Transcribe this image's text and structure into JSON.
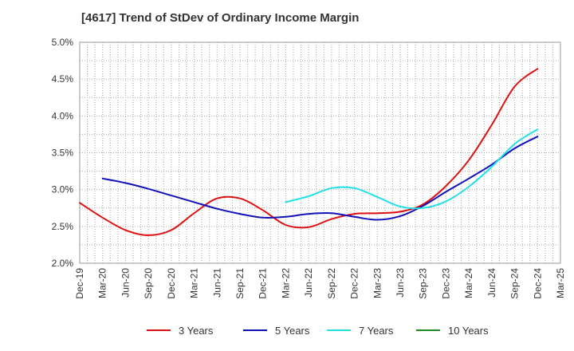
{
  "title": "[4617]  Trend of StDev of Ordinary Income Margin",
  "chart_data": {
    "type": "line",
    "title": "[4617]  Trend of StDev of Ordinary Income Margin",
    "x_tick_labels": [
      "Dec-19",
      "Mar-20",
      "Jun-20",
      "Sep-20",
      "Dec-20",
      "Mar-21",
      "Jun-21",
      "Sep-21",
      "Dec-21",
      "Mar-22",
      "Jun-22",
      "Sep-22",
      "Dec-22",
      "Mar-23",
      "Jun-23",
      "Sep-23",
      "Dec-23",
      "Mar-24",
      "Jun-24",
      "Sep-24",
      "Dec-24",
      "Mar-25"
    ],
    "y_tick_labels": [
      "2.0%",
      "2.5%",
      "3.0%",
      "3.5%",
      "4.0%",
      "4.5%",
      "5.0%"
    ],
    "ylim": [
      2.0,
      5.0
    ],
    "y_unit": "%",
    "grid": true,
    "legend_position": "bottom",
    "series": [
      {
        "name": "3 Years",
        "color": "#dd1111",
        "values": [
          2.82,
          2.62,
          2.45,
          2.38,
          2.45,
          2.68,
          2.88,
          2.88,
          2.72,
          2.52,
          2.49,
          2.6,
          2.67,
          2.68,
          2.7,
          2.8,
          3.05,
          3.4,
          3.88,
          4.4,
          4.64,
          null
        ]
      },
      {
        "name": "5 Years",
        "color": "#1111bb",
        "values": [
          null,
          3.15,
          3.09,
          3.01,
          2.92,
          2.83,
          2.74,
          2.67,
          2.62,
          2.63,
          2.67,
          2.68,
          2.63,
          2.59,
          2.64,
          2.78,
          2.97,
          3.15,
          3.34,
          3.56,
          3.72,
          null
        ]
      },
      {
        "name": "7 Years",
        "color": "#22e0e8",
        "values": [
          null,
          null,
          null,
          null,
          null,
          null,
          null,
          null,
          null,
          2.83,
          2.91,
          3.02,
          3.02,
          2.9,
          2.77,
          2.75,
          2.84,
          3.04,
          3.31,
          3.62,
          3.82,
          null
        ]
      },
      {
        "name": "10 Years",
        "color": "#228822",
        "values": [
          null,
          null,
          null,
          null,
          null,
          null,
          null,
          null,
          null,
          null,
          null,
          null,
          null,
          null,
          null,
          null,
          null,
          null,
          null,
          null,
          null,
          null
        ]
      }
    ]
  }
}
